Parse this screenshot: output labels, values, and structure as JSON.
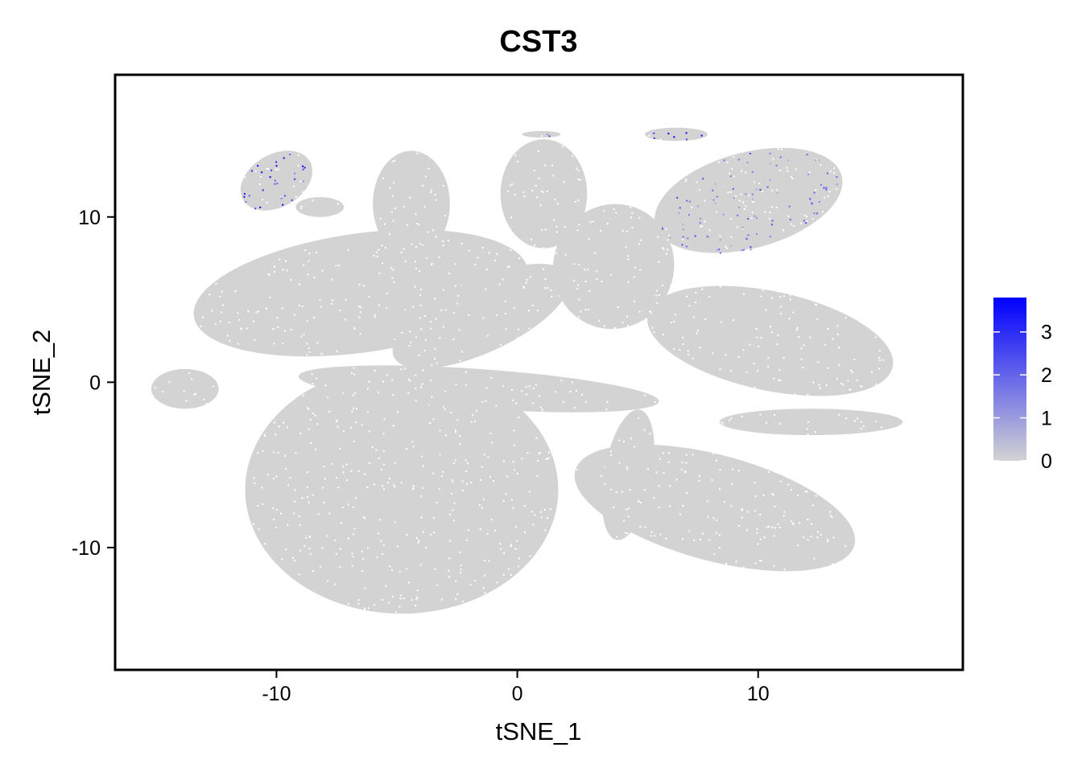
{
  "chart_data": {
    "type": "scatter",
    "title": "CST3",
    "xlabel": "tSNE_1",
    "ylabel": "tSNE_2",
    "xlim": [
      -16.7,
      18.5
    ],
    "ylim": [
      -17.4,
      18.6
    ],
    "xticks": [
      -10,
      0,
      10
    ],
    "yticks": [
      -10,
      0,
      10
    ],
    "xtick_labels": [
      "-10",
      "0",
      "10"
    ],
    "ytick_labels": [
      "-10",
      "0",
      "10"
    ],
    "grid": false,
    "colors": {
      "low": "#d3d3d3",
      "high": "#0000ff"
    },
    "legend": {
      "placement": "right",
      "min": 0,
      "max": 3.8,
      "ticks": [
        0,
        1,
        2,
        3
      ],
      "tick_labels": [
        "0",
        "1",
        "2",
        "3"
      ]
    },
    "clusters": [
      {
        "name": "top-left-small",
        "cx": -10.0,
        "cy": 12.2,
        "rx": 1.6,
        "ry": 1.6,
        "angle": -30,
        "expr": 2.4,
        "density": 0.7
      },
      {
        "name": "left-small-2",
        "cx": -8.2,
        "cy": 10.6,
        "rx": 1.0,
        "ry": 0.6,
        "angle": 0,
        "expr": 0.05,
        "density": 0.3
      },
      {
        "name": "left-blob",
        "cx": -13.8,
        "cy": -0.4,
        "rx": 1.4,
        "ry": 1.2,
        "angle": 0,
        "expr": 0.05,
        "density": 0.25
      },
      {
        "name": "upper-left-large",
        "cx": -6.5,
        "cy": 5.4,
        "rx": 7.0,
        "ry": 3.6,
        "angle": -8,
        "expr": 0.12,
        "density": 0.2
      },
      {
        "name": "upper-left-mid",
        "cx": -4.4,
        "cy": 10.8,
        "rx": 1.6,
        "ry": 3.2,
        "angle": 0,
        "expr": 0.08,
        "density": 0.2
      },
      {
        "name": "left-right-stripe",
        "cx": -1.5,
        "cy": 4.0,
        "rx": 4.0,
        "ry": 2.2,
        "angle": -25,
        "expr": 0.1,
        "density": 0.2
      },
      {
        "name": "top-center",
        "cx": 1.1,
        "cy": 11.4,
        "rx": 1.8,
        "ry": 3.3,
        "angle": 0,
        "expr": 0.08,
        "density": 0.2
      },
      {
        "name": "center-right-top",
        "cx": 4.0,
        "cy": 7.0,
        "rx": 2.5,
        "ry": 3.8,
        "angle": 20,
        "expr": 0.06,
        "density": 0.2
      },
      {
        "name": "top-right",
        "cx": 9.6,
        "cy": 11.0,
        "rx": 4.0,
        "ry": 2.9,
        "angle": -15,
        "expr": 1.3,
        "density": 0.5
      },
      {
        "name": "top-right-tip",
        "cx": 6.6,
        "cy": 15.0,
        "rx": 1.3,
        "ry": 0.4,
        "angle": 0,
        "expr": 3.2,
        "density": 0.8
      },
      {
        "name": "top-center-sliver",
        "cx": 1.0,
        "cy": 15.0,
        "rx": 0.8,
        "ry": 0.2,
        "angle": 0,
        "expr": 1.8,
        "density": 0.6
      },
      {
        "name": "right-mid",
        "cx": 10.5,
        "cy": 2.5,
        "rx": 5.2,
        "ry": 3.0,
        "angle": 12,
        "expr": 0.08,
        "density": 0.2
      },
      {
        "name": "right-mid-tail",
        "cx": 12.2,
        "cy": -2.4,
        "rx": 3.8,
        "ry": 0.8,
        "angle": 0,
        "expr": 0.05,
        "density": 0.2
      },
      {
        "name": "bottom-left-large",
        "cx": -4.8,
        "cy": -6.5,
        "rx": 6.5,
        "ry": 7.5,
        "angle": 0,
        "expr": 0.12,
        "density": 0.2
      },
      {
        "name": "middle-band",
        "cx": -1.6,
        "cy": -0.4,
        "rx": 7.5,
        "ry": 1.2,
        "angle": 4,
        "expr": 0.08,
        "density": 0.2
      },
      {
        "name": "bottom-right",
        "cx": 8.2,
        "cy": -7.6,
        "rx": 6.0,
        "ry": 3.2,
        "angle": 15,
        "expr": 0.08,
        "density": 0.2
      },
      {
        "name": "bottom-right-stem",
        "cx": 4.6,
        "cy": -5.6,
        "rx": 1.0,
        "ry": 4.0,
        "angle": 10,
        "expr": 0.06,
        "density": 0.2
      }
    ]
  }
}
